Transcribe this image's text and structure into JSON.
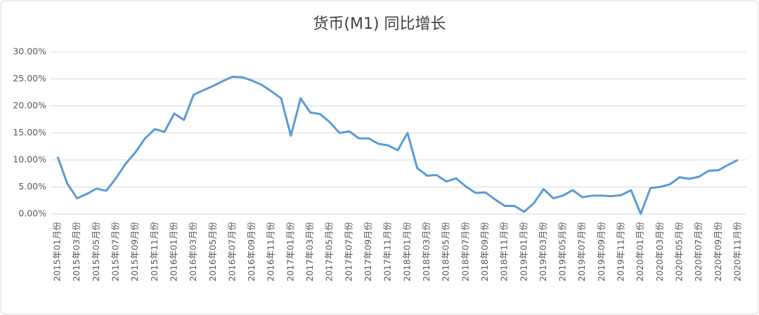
{
  "chart_data": {
    "type": "line",
    "title": "货币(M1) 同比增长",
    "categories": [
      "2015年01月份",
      null,
      "2015年03月份",
      null,
      "2015年05月份",
      null,
      "2015年07月份",
      null,
      "2015年09月份",
      null,
      "2015年11月份",
      null,
      "2016年01月份",
      null,
      "2016年03月份",
      null,
      "2016年05月份",
      null,
      "2016年07月份",
      null,
      "2016年09月份",
      null,
      "2016年11月份",
      null,
      "2017年01月份",
      null,
      "2017年03月份",
      null,
      "2017年05月份",
      null,
      "2017年07月份",
      null,
      "2017年09月份",
      null,
      "2017年11月份",
      null,
      "2018年01月份",
      null,
      "2018年03月份",
      null,
      "2018年05月份",
      null,
      "2018年07月份",
      null,
      "2018年09月份",
      null,
      "2018年11月份",
      null,
      "2019年01月份",
      null,
      "2019年03月份",
      null,
      "2019年05月份",
      null,
      "2019年07月份",
      null,
      "2019年09月份",
      null,
      "2019年11月份",
      null,
      "2020年01月份",
      null,
      "2020年03月份",
      null,
      "2020年05月份",
      null,
      "2020年07月份",
      null,
      "2020年09月份",
      null,
      "2020年11月份"
    ],
    "series": [
      {
        "name": "货币(M1)",
        "color": "#5b9bd5",
        "values": [
          10.6,
          5.6,
          2.9,
          3.7,
          4.7,
          4.3,
          6.6,
          9.3,
          11.4,
          14.0,
          15.7,
          15.2,
          18.6,
          17.4,
          22.1,
          22.9,
          23.7,
          24.6,
          25.4,
          25.3,
          24.7,
          23.9,
          22.7,
          21.4,
          14.5,
          21.4,
          18.8,
          18.5,
          17.0,
          15.0,
          15.3,
          14.0,
          14.0,
          13.0,
          12.7,
          11.8,
          15.0,
          8.5,
          7.1,
          7.2,
          6.0,
          6.6,
          5.1,
          3.9,
          4.0,
          2.7,
          1.5,
          1.5,
          0.4,
          2.0,
          4.6,
          2.9,
          3.4,
          4.4,
          3.1,
          3.4,
          3.4,
          3.3,
          3.5,
          4.4,
          0.0,
          4.8,
          5.0,
          5.5,
          6.8,
          6.5,
          6.9,
          8.0,
          8.1,
          9.1,
          10.0
        ]
      }
    ],
    "ylim": [
      0,
      30
    ],
    "yticks": [
      {
        "value": 0,
        "label": "0.00%"
      },
      {
        "value": 5,
        "label": "5.00%"
      },
      {
        "value": 10,
        "label": "10.00%"
      },
      {
        "value": 15,
        "label": "15.00%"
      },
      {
        "value": 20,
        "label": "20.00%"
      },
      {
        "value": 25,
        "label": "25.00%"
      },
      {
        "value": 30,
        "label": "30.00%"
      }
    ],
    "grid": true
  }
}
